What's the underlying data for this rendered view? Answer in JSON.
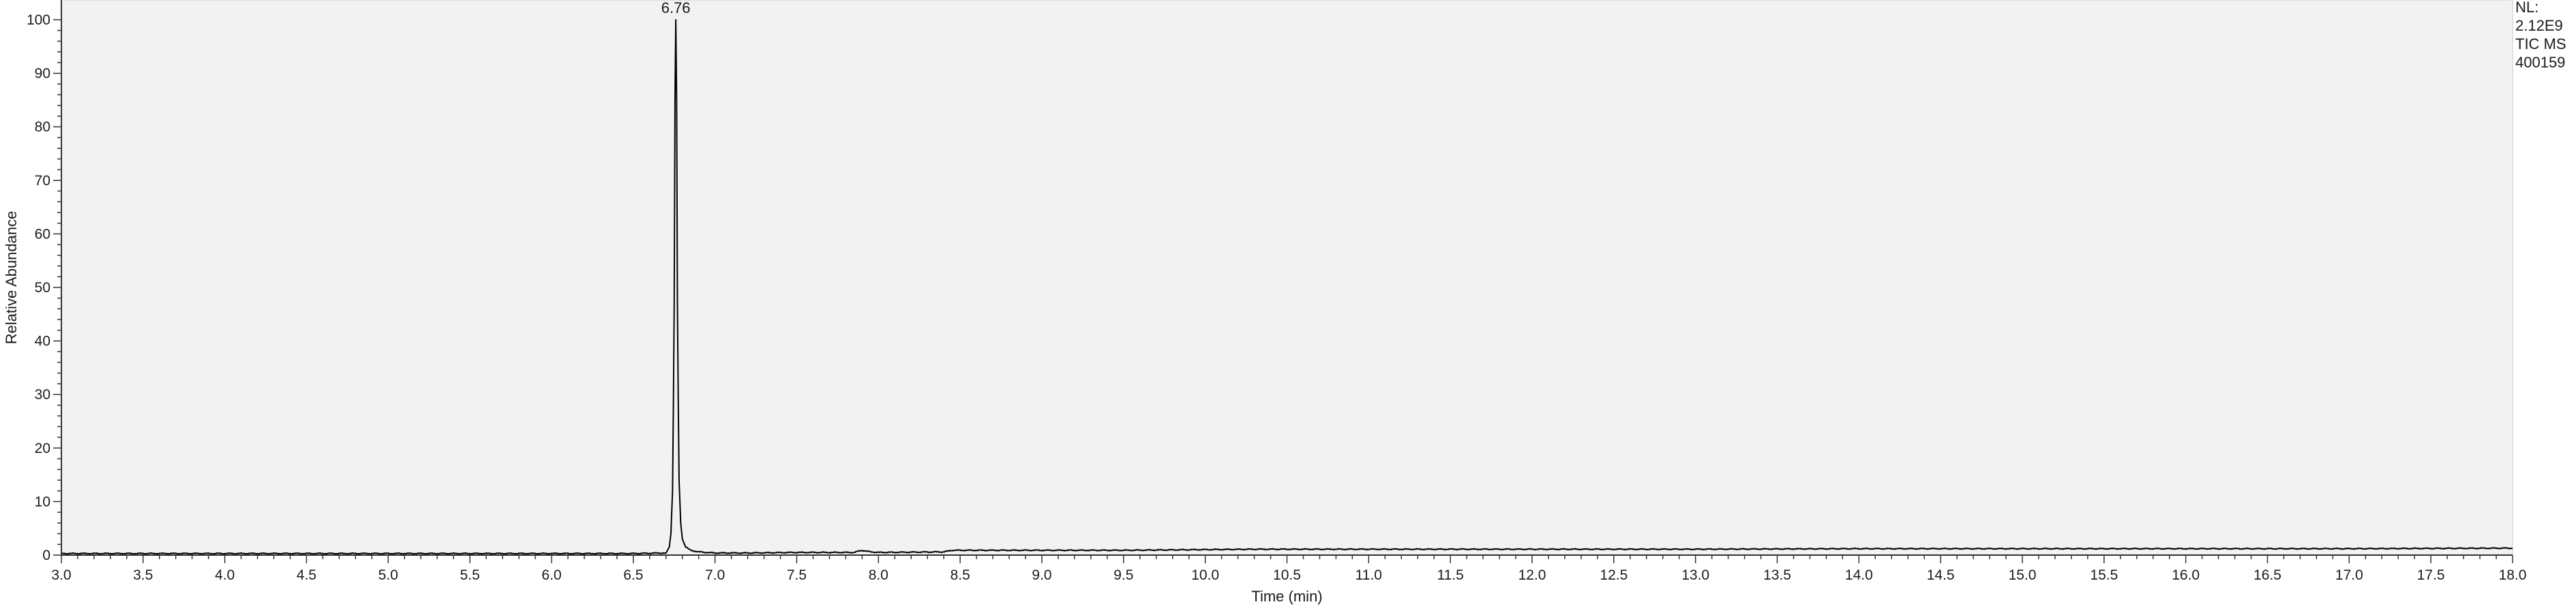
{
  "chart_data": {
    "type": "line",
    "xlabel": "Time (min)",
    "ylabel": "Relative Abundance",
    "xlim": [
      3.0,
      18.0
    ],
    "ylim": [
      0,
      100
    ],
    "x_ticks": [
      "3.0",
      "3.5",
      "4.0",
      "4.5",
      "5.0",
      "5.5",
      "6.0",
      "6.5",
      "7.0",
      "7.5",
      "8.0",
      "8.5",
      "9.0",
      "9.5",
      "10.0",
      "10.5",
      "11.0",
      "11.5",
      "12.0",
      "12.5",
      "13.0",
      "13.5",
      "14.0",
      "14.5",
      "15.0",
      "15.5",
      "16.0",
      "16.5",
      "17.0",
      "17.5",
      "18.0"
    ],
    "y_ticks": [
      "0",
      "10",
      "20",
      "30",
      "40",
      "50",
      "60",
      "70",
      "80",
      "90",
      "100"
    ],
    "info_lines": [
      "NL:",
      "2.12E9",
      "TIC  MS",
      "400159"
    ],
    "peak_labels": [
      {
        "x": 6.76,
        "y": 100,
        "text": "6.76"
      }
    ],
    "grid": false,
    "legend": "none",
    "colors": {
      "plot_bg": "#f2f2f2",
      "trace": "#000000",
      "axis": "#333333"
    },
    "series": [
      {
        "x": [
          3.0,
          4.0,
          5.0,
          6.0,
          6.5,
          6.7,
          6.72,
          6.73,
          6.74,
          6.745,
          6.75,
          6.755,
          6.76,
          6.765,
          6.77,
          6.775,
          6.78,
          6.79,
          6.8,
          6.82,
          6.85,
          6.9,
          7.0,
          7.2,
          7.5,
          7.85,
          7.9,
          7.93,
          7.96,
          8.0,
          8.4,
          8.45,
          8.9,
          9.5,
          10.3,
          11.0,
          11.6,
          12.0,
          13.0,
          14.0,
          15.0,
          16.0,
          17.0,
          18.0
        ],
        "y": [
          0.3,
          0.3,
          0.3,
          0.3,
          0.3,
          0.4,
          1.5,
          4.0,
          12.0,
          27.0,
          46.0,
          85.0,
          100,
          85.0,
          47.0,
          29.0,
          14.0,
          6.0,
          3.0,
          1.5,
          0.9,
          0.6,
          0.4,
          0.4,
          0.5,
          0.5,
          0.9,
          0.7,
          0.6,
          0.5,
          0.6,
          0.9,
          0.9,
          0.9,
          1.1,
          1.1,
          1.1,
          1.1,
          1.1,
          1.2,
          1.2,
          1.2,
          1.2,
          1.3
        ]
      }
    ]
  }
}
